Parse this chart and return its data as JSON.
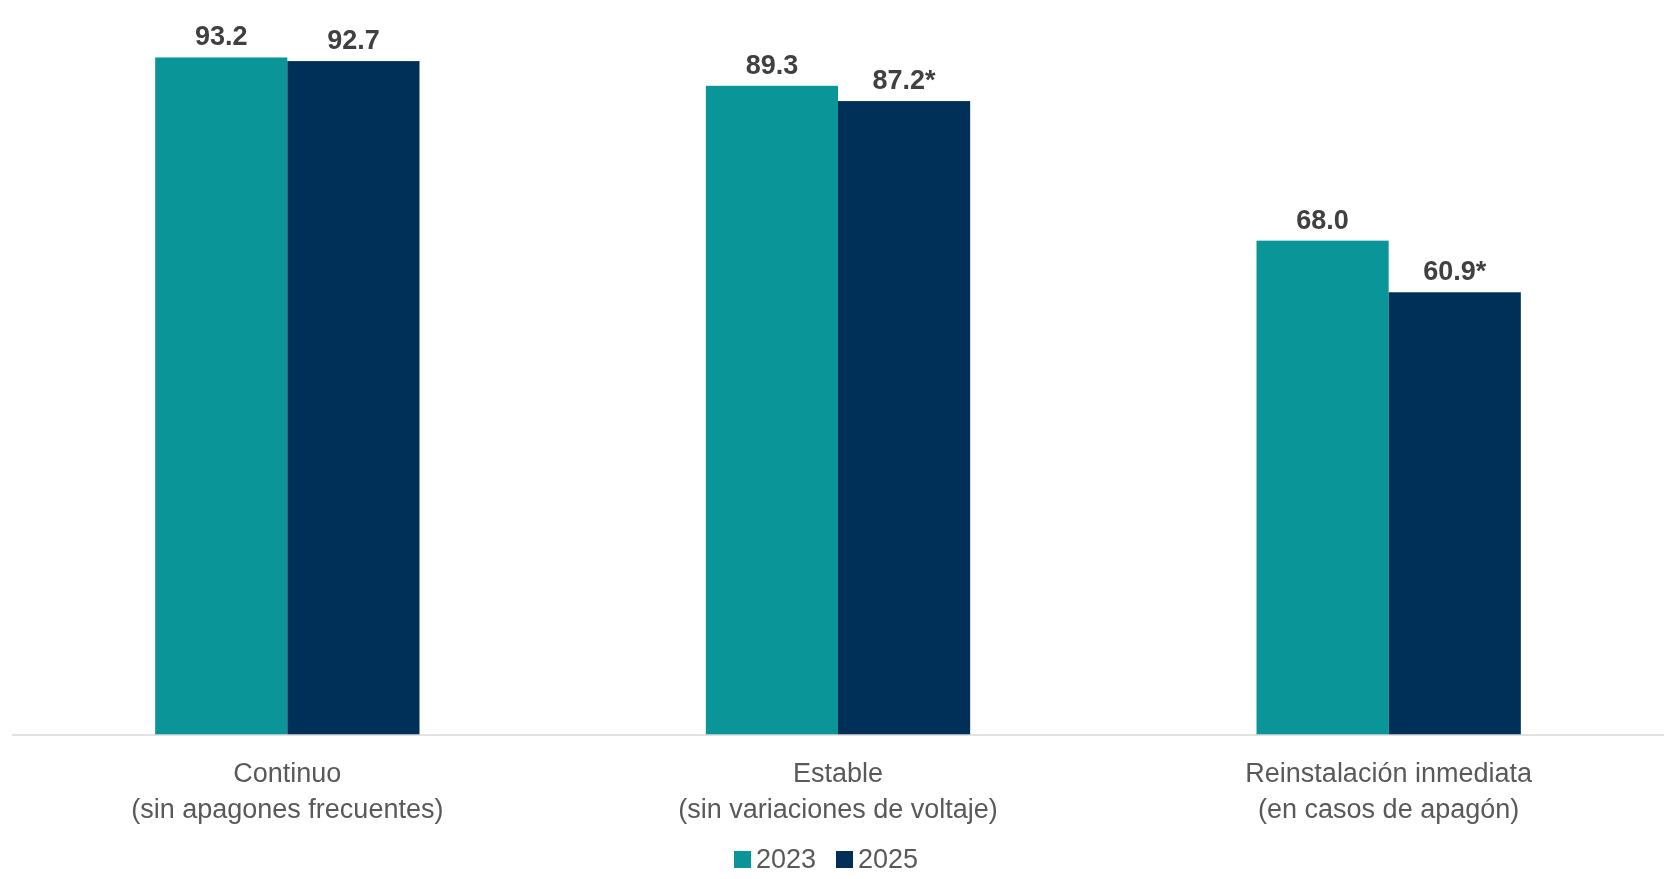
{
  "chart_data": {
    "type": "bar",
    "categories": [
      "Continuo\n(sin apagones frecuentes)",
      "Estable\n(sin variaciones de voltaje)",
      "Reinstalación inmediata\n(en casos de apagón)"
    ],
    "series": [
      {
        "name": "2023",
        "color": "#0a9699",
        "values": [
          93.2,
          89.3,
          68.0
        ],
        "value_labels": [
          "93.2",
          "89.3",
          "68.0"
        ]
      },
      {
        "name": "2025",
        "color": "#003057",
        "values": [
          92.7,
          87.2,
          60.9
        ],
        "value_labels": [
          "92.7",
          "87.2*",
          "60.9*"
        ]
      }
    ],
    "legend": "bottom",
    "grid": false
  }
}
